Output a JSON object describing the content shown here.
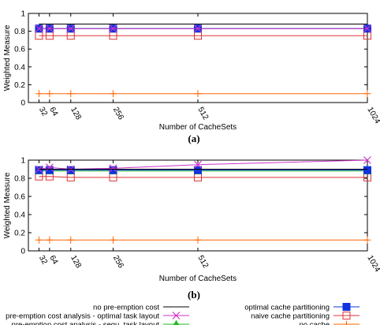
{
  "captions": {
    "a": "(a)",
    "b": "(b)"
  },
  "legend": {
    "left": [
      {
        "label": "no pre-emption cost",
        "series": "no_preemption"
      },
      {
        "label": "pre-emption cost analysis - optimal task layout",
        "series": "optimal_layout"
      },
      {
        "label": "pre-emption cost analysis - sequ. task layout",
        "series": "sequ_layout"
      }
    ],
    "right": [
      {
        "label": "optimal cache partitioning",
        "series": "optimal_partitioning"
      },
      {
        "label": "naive cache partitioning",
        "series": "naive_partitioning"
      },
      {
        "label": "no cache",
        "series": "no_cache"
      }
    ]
  },
  "series_style": {
    "no_preemption": {
      "color": "#000000",
      "marker": "none"
    },
    "optimal_layout": {
      "color": "#cc33cc",
      "marker": "x"
    },
    "sequ_layout": {
      "color": "#22bb22",
      "marker": "triangle"
    },
    "optimal_partitioning": {
      "color": "#1133dd",
      "marker": "filled-square"
    },
    "naive_partitioning": {
      "color": "#dd3333",
      "marker": "open-square"
    },
    "no_cache": {
      "color": "#ff6600",
      "marker": "plus"
    }
  },
  "chart_data": [
    {
      "type": "line",
      "panel": "a",
      "xlabel": "Number of CacheSets",
      "ylabel": "Weighted Measure",
      "x": [
        32,
        64,
        128,
        256,
        512,
        1024
      ],
      "x_tick_labels": [
        "32",
        "64",
        "128",
        "256",
        "512",
        "1024"
      ],
      "xlim": [
        0,
        1024
      ],
      "ylim": [
        0,
        1
      ],
      "y_ticks": [
        0,
        0.2,
        0.4,
        0.6,
        0.8,
        1
      ],
      "y_tick_labels": [
        "0",
        "0.2",
        "0.4",
        "0.6",
        "0.8",
        "1"
      ],
      "series": [
        {
          "key": "no_preemption",
          "values": [
            0.88,
            0.88,
            0.88,
            0.88,
            0.88,
            0.88
          ]
        },
        {
          "key": "optimal_layout",
          "values": [
            0.83,
            0.83,
            0.83,
            0.83,
            0.83,
            0.83
          ]
        },
        {
          "key": "sequ_layout",
          "values": [
            0.83,
            0.83,
            0.83,
            0.83,
            0.83,
            0.83
          ]
        },
        {
          "key": "optimal_partitioning",
          "values": [
            0.83,
            0.83,
            0.83,
            0.83,
            0.83,
            0.83
          ]
        },
        {
          "key": "naive_partitioning",
          "values": [
            0.75,
            0.75,
            0.75,
            0.75,
            0.75,
            0.75
          ]
        },
        {
          "key": "no_cache",
          "values": [
            0.1,
            0.1,
            0.1,
            0.1,
            0.1,
            0.1
          ]
        }
      ]
    },
    {
      "type": "line",
      "panel": "b",
      "xlabel": "Number of CacheSets",
      "ylabel": "Weighted Measure",
      "x": [
        32,
        64,
        128,
        256,
        512,
        1024
      ],
      "x_tick_labels": [
        "32",
        "64",
        "128",
        "256",
        "512",
        "1024"
      ],
      "xlim": [
        0,
        1024
      ],
      "ylim": [
        0,
        1
      ],
      "y_ticks": [
        0,
        0.2,
        0.4,
        0.6,
        0.8,
        1
      ],
      "y_tick_labels": [
        "0",
        "0.2",
        "0.4",
        "0.6",
        "0.8",
        "1"
      ],
      "series": [
        {
          "key": "no_preemption",
          "values": [
            0.9,
            0.9,
            0.9,
            0.9,
            0.9,
            0.9
          ]
        },
        {
          "key": "optimal_layout",
          "values": [
            0.9,
            0.92,
            0.9,
            0.91,
            0.95,
            1.0
          ]
        },
        {
          "key": "sequ_layout",
          "values": [
            0.88,
            0.88,
            0.88,
            0.88,
            0.88,
            0.88
          ]
        },
        {
          "key": "optimal_partitioning",
          "values": [
            0.89,
            0.89,
            0.89,
            0.89,
            0.89,
            0.89
          ]
        },
        {
          "key": "naive_partitioning",
          "values": [
            0.82,
            0.82,
            0.81,
            0.81,
            0.81,
            0.81
          ]
        },
        {
          "key": "no_cache",
          "values": [
            0.12,
            0.12,
            0.12,
            0.12,
            0.12,
            0.12
          ]
        }
      ]
    }
  ]
}
